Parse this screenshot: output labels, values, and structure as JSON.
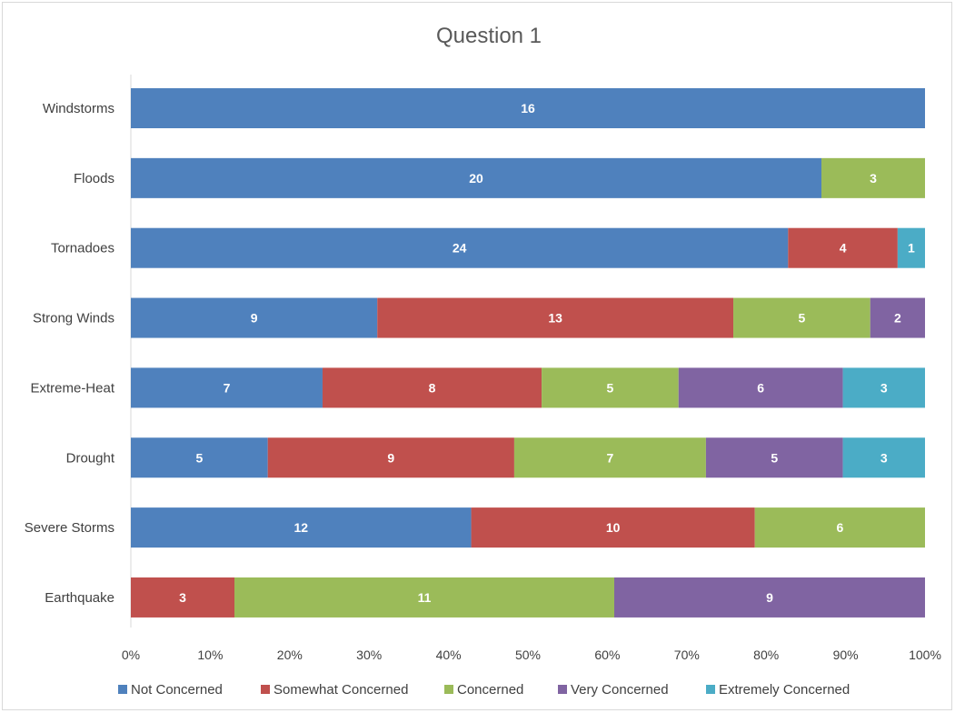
{
  "chart_data": {
    "type": "bar",
    "orientation": "horizontal",
    "stacking": "percent",
    "title": "Question 1",
    "xlabel": "",
    "ylabel": "",
    "xlim": [
      0,
      100
    ],
    "x_ticks": [
      "0%",
      "10%",
      "20%",
      "30%",
      "40%",
      "50%",
      "60%",
      "70%",
      "80%",
      "90%",
      "100%"
    ],
    "grid": false,
    "legend_position": "bottom",
    "categories": [
      "Windstorms",
      "Floods",
      "Tornadoes",
      "Strong Winds",
      "Extreme-Heat",
      "Drought",
      "Severe Storms",
      "Earthquake"
    ],
    "series": [
      {
        "name": "Not Concerned",
        "color": "#4f81bd",
        "values": [
          16,
          20,
          24,
          9,
          7,
          5,
          12,
          0
        ]
      },
      {
        "name": "Somewhat Concerned",
        "color": "#c0504d",
        "values": [
          0,
          0,
          4,
          13,
          8,
          9,
          10,
          3
        ]
      },
      {
        "name": "Concerned",
        "color": "#9bbb59",
        "values": [
          0,
          3,
          0,
          5,
          5,
          7,
          6,
          11
        ]
      },
      {
        "name": "Very Concerned",
        "color": "#8064a2",
        "values": [
          0,
          0,
          0,
          2,
          6,
          5,
          0,
          9
        ]
      },
      {
        "name": "Extremely Concerned",
        "color": "#4bacc6",
        "values": [
          0,
          0,
          1,
          0,
          3,
          3,
          0,
          0
        ]
      }
    ]
  }
}
